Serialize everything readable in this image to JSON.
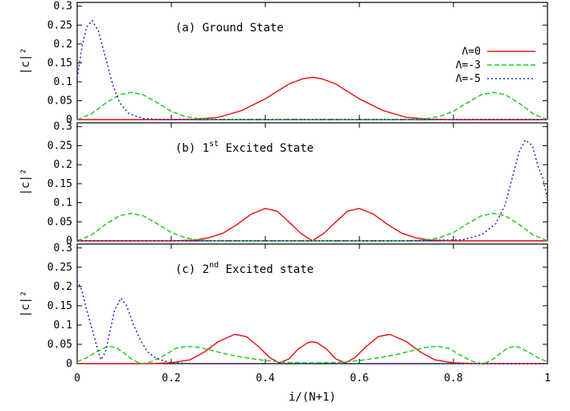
{
  "chart_data": {
    "type": "line",
    "xlabel": "i/(N+1)",
    "xlim": [
      0,
      1
    ],
    "x_ticks": [
      "0",
      "0.2",
      "0.4",
      "0.6",
      "0.8",
      "1"
    ],
    "y_ticks": [
      "0",
      "0.05",
      "0.1",
      "0.15",
      "0.2",
      "0.25",
      "0.3"
    ],
    "legend_position": "top-right",
    "legend": [
      {
        "label": "Λ=0",
        "color": "#e41a1c",
        "dash": "solid"
      },
      {
        "label": "Λ=-3",
        "color": "#22cc22",
        "dash": "dashed"
      },
      {
        "label": "Λ=-5",
        "color": "#1f1fcc",
        "dash": "dotted"
      }
    ],
    "panels": [
      {
        "title_prefix": "(a)  Ground State",
        "title_sup": "",
        "title_suffix": "",
        "ylabel": "|c|²",
        "ylim": [
          0,
          0.31
        ],
        "series": [
          {
            "name": "Λ=0",
            "color": "#e41a1c",
            "dash": "solid",
            "points": [
              [
                0,
                0
              ],
              [
                0.2,
                0
              ],
              [
                0.25,
                0.001
              ],
              [
                0.3,
                0.006
              ],
              [
                0.35,
                0.024
              ],
              [
                0.4,
                0.055
              ],
              [
                0.45,
                0.094
              ],
              [
                0.48,
                0.108
              ],
              [
                0.5,
                0.112
              ],
              [
                0.52,
                0.108
              ],
              [
                0.55,
                0.094
              ],
              [
                0.6,
                0.055
              ],
              [
                0.65,
                0.024
              ],
              [
                0.7,
                0.006
              ],
              [
                0.75,
                0.001
              ],
              [
                0.8,
                0
              ],
              [
                1,
                0
              ]
            ]
          },
          {
            "name": "Λ=-3",
            "color": "#22cc22",
            "dash": "dashed",
            "points": [
              [
                0,
                0
              ],
              [
                0.03,
                0.015
              ],
              [
                0.06,
                0.043
              ],
              [
                0.09,
                0.066
              ],
              [
                0.115,
                0.072
              ],
              [
                0.14,
                0.066
              ],
              [
                0.17,
                0.045
              ],
              [
                0.2,
                0.022
              ],
              [
                0.23,
                0.008
              ],
              [
                0.26,
                0.002
              ],
              [
                0.3,
                0
              ],
              [
                0.7,
                0
              ],
              [
                0.74,
                0.002
              ],
              [
                0.77,
                0.008
              ],
              [
                0.8,
                0.022
              ],
              [
                0.83,
                0.045
              ],
              [
                0.86,
                0.066
              ],
              [
                0.885,
                0.072
              ],
              [
                0.91,
                0.066
              ],
              [
                0.94,
                0.043
              ],
              [
                0.97,
                0.015
              ],
              [
                1,
                0
              ]
            ]
          },
          {
            "name": "Λ=-5",
            "color": "#1f1fcc",
            "dash": "dotted",
            "points": [
              [
                0,
                0.11
              ],
              [
                0.01,
                0.19
              ],
              [
                0.02,
                0.245
              ],
              [
                0.032,
                0.262
              ],
              [
                0.045,
                0.235
              ],
              [
                0.06,
                0.165
              ],
              [
                0.075,
                0.095
              ],
              [
                0.09,
                0.045
              ],
              [
                0.11,
                0.016
              ],
              [
                0.14,
                0.003
              ],
              [
                0.18,
                0
              ],
              [
                0.3,
                0
              ],
              [
                1,
                0
              ]
            ]
          }
        ]
      },
      {
        "title_prefix": "(b)  1",
        "title_sup": "st",
        "title_suffix": " Excited State",
        "ylabel": "|c|²",
        "ylim": [
          0,
          0.31
        ],
        "series": [
          {
            "name": "Λ=0",
            "color": "#e41a1c",
            "dash": "solid",
            "points": [
              [
                0,
                0
              ],
              [
                0.2,
                0
              ],
              [
                0.25,
                0.002
              ],
              [
                0.28,
                0.008
              ],
              [
                0.31,
                0.02
              ],
              [
                0.34,
                0.043
              ],
              [
                0.37,
                0.07
              ],
              [
                0.4,
                0.085
              ],
              [
                0.425,
                0.078
              ],
              [
                0.45,
                0.05
              ],
              [
                0.475,
                0.02
              ],
              [
                0.5,
                0
              ],
              [
                0.525,
                0.02
              ],
              [
                0.55,
                0.05
              ],
              [
                0.575,
                0.078
              ],
              [
                0.6,
                0.085
              ],
              [
                0.63,
                0.07
              ],
              [
                0.66,
                0.043
              ],
              [
                0.69,
                0.02
              ],
              [
                0.72,
                0.008
              ],
              [
                0.75,
                0.002
              ],
              [
                0.8,
                0
              ],
              [
                1,
                0
              ]
            ]
          },
          {
            "name": "Λ=-3",
            "color": "#22cc22",
            "dash": "dashed",
            "points": [
              [
                0,
                0
              ],
              [
                0.03,
                0.015
              ],
              [
                0.06,
                0.043
              ],
              [
                0.09,
                0.066
              ],
              [
                0.115,
                0.072
              ],
              [
                0.14,
                0.066
              ],
              [
                0.17,
                0.045
              ],
              [
                0.2,
                0.022
              ],
              [
                0.23,
                0.008
              ],
              [
                0.26,
                0.002
              ],
              [
                0.3,
                0
              ],
              [
                0.7,
                0
              ],
              [
                0.74,
                0.002
              ],
              [
                0.77,
                0.008
              ],
              [
                0.8,
                0.022
              ],
              [
                0.83,
                0.045
              ],
              [
                0.86,
                0.066
              ],
              [
                0.885,
                0.072
              ],
              [
                0.91,
                0.066
              ],
              [
                0.94,
                0.043
              ],
              [
                0.97,
                0.015
              ],
              [
                1,
                0
              ]
            ]
          },
          {
            "name": "Λ=-5",
            "color": "#1f1fcc",
            "dash": "dotted",
            "points": [
              [
                0,
                0
              ],
              [
                0.7,
                0
              ],
              [
                0.82,
                0.003
              ],
              [
                0.86,
                0.016
              ],
              [
                0.89,
                0.045
              ],
              [
                0.91,
                0.095
              ],
              [
                0.925,
                0.165
              ],
              [
                0.94,
                0.235
              ],
              [
                0.953,
                0.265
              ],
              [
                0.968,
                0.25
              ],
              [
                0.98,
                0.195
              ],
              [
                0.99,
                0.165
              ],
              [
                1,
                0.11
              ]
            ]
          }
        ]
      },
      {
        "title_prefix": "(c)  2",
        "title_sup": "nd",
        "title_suffix": " Excited state",
        "ylabel": "|c|²",
        "ylim": [
          0,
          0.31
        ],
        "series": [
          {
            "name": "Λ=0",
            "color": "#e41a1c",
            "dash": "solid",
            "points": [
              [
                0,
                0
              ],
              [
                0.15,
                0
              ],
              [
                0.2,
                0.002
              ],
              [
                0.24,
                0.01
              ],
              [
                0.27,
                0.03
              ],
              [
                0.3,
                0.057
              ],
              [
                0.335,
                0.076
              ],
              [
                0.36,
                0.07
              ],
              [
                0.385,
                0.045
              ],
              [
                0.41,
                0.015
              ],
              [
                0.43,
                0.002
              ],
              [
                0.45,
                0.012
              ],
              [
                0.47,
                0.038
              ],
              [
                0.49,
                0.054
              ],
              [
                0.5,
                0.057
              ],
              [
                0.51,
                0.054
              ],
              [
                0.53,
                0.038
              ],
              [
                0.55,
                0.012
              ],
              [
                0.57,
                0.002
              ],
              [
                0.59,
                0.015
              ],
              [
                0.615,
                0.045
              ],
              [
                0.64,
                0.07
              ],
              [
                0.665,
                0.076
              ],
              [
                0.7,
                0.057
              ],
              [
                0.73,
                0.03
              ],
              [
                0.76,
                0.01
              ],
              [
                0.8,
                0.002
              ],
              [
                0.85,
                0
              ],
              [
                1,
                0
              ]
            ]
          },
          {
            "name": "Λ=-3",
            "color": "#22cc22",
            "dash": "dashed",
            "points": [
              [
                0,
                0.005
              ],
              [
                0.02,
                0.015
              ],
              [
                0.04,
                0.03
              ],
              [
                0.06,
                0.042
              ],
              [
                0.07,
                0.045
              ],
              [
                0.085,
                0.04
              ],
              [
                0.1,
                0.027
              ],
              [
                0.115,
                0.012
              ],
              [
                0.13,
                0.003
              ],
              [
                0.14,
                0
              ],
              [
                0.16,
                0.006
              ],
              [
                0.19,
                0.025
              ],
              [
                0.21,
                0.04
              ],
              [
                0.235,
                0.045
              ],
              [
                0.26,
                0.042
              ],
              [
                0.29,
                0.033
              ],
              [
                0.32,
                0.024
              ],
              [
                0.36,
                0.015
              ],
              [
                0.4,
                0.008
              ],
              [
                0.45,
                0.003
              ],
              [
                0.5,
                0.002
              ],
              [
                0.55,
                0.003
              ],
              [
                0.6,
                0.008
              ],
              [
                0.64,
                0.015
              ],
              [
                0.68,
                0.024
              ],
              [
                0.71,
                0.033
              ],
              [
                0.74,
                0.042
              ],
              [
                0.765,
                0.045
              ],
              [
                0.79,
                0.04
              ],
              [
                0.81,
                0.025
              ],
              [
                0.84,
                0.006
              ],
              [
                0.86,
                0
              ],
              [
                0.87,
                0.003
              ],
              [
                0.885,
                0.012
              ],
              [
                0.9,
                0.027
              ],
              [
                0.915,
                0.04
              ],
              [
                0.93,
                0.045
              ],
              [
                0.94,
                0.042
              ],
              [
                0.96,
                0.03
              ],
              [
                0.98,
                0.015
              ],
              [
                1,
                0.005
              ]
            ]
          },
          {
            "name": "Λ=-5",
            "color": "#1f1fcc",
            "dash": "dotted",
            "points": [
              [
                0,
                0.215
              ],
              [
                0.01,
                0.19
              ],
              [
                0.02,
                0.14
              ],
              [
                0.035,
                0.075
              ],
              [
                0.05,
                0.01
              ],
              [
                0.06,
                0.03
              ],
              [
                0.07,
                0.085
              ],
              [
                0.08,
                0.14
              ],
              [
                0.093,
                0.17
              ],
              [
                0.105,
                0.15
              ],
              [
                0.12,
                0.1
              ],
              [
                0.135,
                0.06
              ],
              [
                0.15,
                0.03
              ],
              [
                0.17,
                0.012
              ],
              [
                0.2,
                0.002
              ],
              [
                0.25,
                0
              ],
              [
                1,
                0
              ]
            ]
          }
        ]
      }
    ]
  }
}
